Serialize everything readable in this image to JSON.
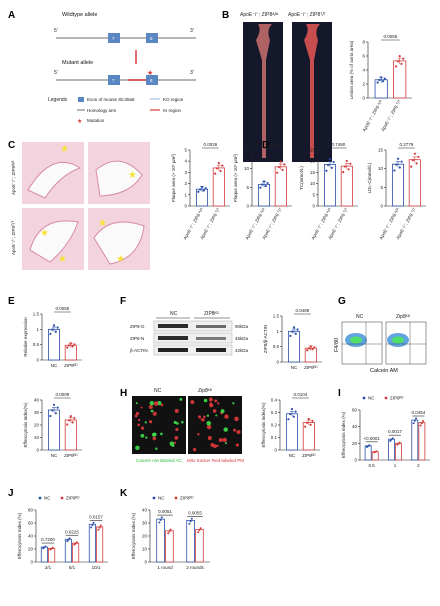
{
  "panels": {
    "A": {
      "label": "A",
      "wildtype": "Wildtype allele",
      "mutant": "Mutant allele",
      "five": "5'",
      "three": "3'",
      "exon7": "7",
      "exon8": "8",
      "legends": "Legends",
      "legend_exon": "Exon of mouse Slc39a8",
      "legend_ko": "KO region",
      "legend_homology": "Homology arm",
      "legend_ki": "KI region",
      "legend_mutation": "Mutation"
    },
    "B": {
      "label": "B",
      "title_left": "ApoE⁻/⁻; ZIP8ᴬ/ᴬ",
      "title_right": "ApoE⁻/⁻; ZIP8ᵀ/ᵀ",
      "pvalue": "0.0055",
      "ylabel": "Lesion area (% of aorta area)",
      "xtick1": "ApoE⁻/⁻; ZIP8 ᴬ/ᴬ",
      "xtick2": "ApoE⁻/⁻; ZIP8 ᵀ/ᵀ"
    },
    "C": {
      "label": "C",
      "row1": "ApoE⁻/⁻; ZIP8ᴬ/ᴬ",
      "row2": "ApoE⁻/⁻; ZIP8ᵀ/ᵀ",
      "p1": "0.0026",
      "p2": "0.0026",
      "ylabel1": "Plaque area (× 10⁵ μm²)",
      "ylabel2": "Plaque area (× 10⁵ μm²)"
    },
    "D": {
      "label": "D",
      "p1": "0.7480",
      "p2": "0.2779",
      "ylabel1": "TC(mmol/L)",
      "ylabel2": "LDL-C(mmol/L)"
    },
    "E": {
      "label": "E",
      "pvalue": "0.0055",
      "ylabel": "Relative expression",
      "xtick1": "NC",
      "xtick2": "ZIP8ᴷᴰ"
    },
    "F": {
      "label": "F",
      "lane_nc": "NC",
      "lane_kd": "ZIP8ᴷᴰ",
      "band1": "ZIP8-G",
      "band2": "ZIP8-N",
      "band3": "β-ACTIN",
      "kda1": "90kDa",
      "kda2": "45kDa",
      "kda3": "42kDa",
      "pvalue": "0.0489",
      "ylabel": "ZIP8/β-ACTIN",
      "xtick1": "NC",
      "xtick2": "ZIP8ᴷᴰ"
    },
    "G": {
      "label": "G",
      "nc": "NC",
      "kd": "Zip8ᴷᴰ",
      "ylabel": "F4/80",
      "xlabel": "Calcein AM"
    },
    "E2": {
      "pvalue": "0.0009",
      "ylabel": "Efferocytosis Index(%)",
      "xtick1": "NC",
      "xtick2": "ZIP8ᴷᴰ"
    },
    "H": {
      "label": "H",
      "nc": "NC",
      "kd": "Zip8ᴷᴰ",
      "caption_green": "Calcein AM labeled AC;",
      "caption_red": "Mito tracker Red-labeled PM",
      "pvalue": "0.0104",
      "ylabel": "Efferocytosis Index(%)",
      "xtick1": "NC",
      "xtick2": "ZIP8ᴷᴰ"
    },
    "I": {
      "label": "I",
      "legend_nc": "NC",
      "legend_kd": "ZIP8ᴷᴰ",
      "p1": "<0.0001",
      "p2": "0.0017",
      "p3": "0.0454",
      "ylabel": "Efferocytosis Index (%)",
      "x1": "0.5",
      "x2": "1",
      "x3": "2"
    },
    "J": {
      "label": "J",
      "legend_nc": "NC",
      "legend_kd": "ZIP8ᴷᴰ",
      "p1": "0.7200",
      "p2": "0.0225",
      "p3": "0.0157",
      "ylabel": "Efferocytosis Index (%)",
      "x1": "2/1",
      "x2": "5/1",
      "x3": "10/1"
    },
    "K": {
      "label": "K",
      "legend_nc": "NC",
      "legend_kd": "ZIP8ᴷᴰ",
      "p1": "0.0051",
      "p2": "0.0055",
      "ylabel": "Efferocytosis Index (%)",
      "x1": "1 round",
      "x2": "2 rounds"
    }
  },
  "chart_data": [
    {
      "panel": "B",
      "type": "bar",
      "categories": [
        "ApoE⁻/⁻; ZIP8 ᴬ/ᴬ",
        "ApoE⁻/⁻; ZIP8 ᵀ/ᵀ"
      ],
      "values": [
        2.6,
        5.3
      ],
      "ylim": [
        0,
        8
      ],
      "yticks": [
        0,
        2,
        4,
        6,
        8
      ]
    },
    {
      "panel": "C1",
      "type": "bar",
      "categories": [
        "ApoE⁻/⁻; ZIP8 ᴬ/ᴬ",
        "ApoE⁻/⁻; ZIP8 ᵀ/ᵀ"
      ],
      "values": [
        1.5,
        3.4
      ],
      "ylim": [
        0,
        5
      ],
      "yticks": [
        0,
        1,
        2,
        3,
        4,
        5
      ]
    },
    {
      "panel": "C2",
      "type": "bar",
      "categories": [
        "ApoE⁻/⁻; ZIP8 ᴬ/ᴬ",
        "ApoE⁻/⁻; ZIP8 ᵀ/ᵀ"
      ],
      "values": [
        5.8,
        10.5
      ],
      "ylim": [
        0,
        15
      ],
      "yticks": [
        0,
        5,
        10,
        15
      ]
    },
    {
      "panel": "D1",
      "type": "bar",
      "categories": [
        "ApoE⁻/⁻; ZIP8 ᴬ/ᴬ",
        "ApoE⁻/⁻; ZIP8 ᵀ/ᵀ"
      ],
      "values": [
        18.5,
        17.8
      ],
      "ylim": [
        0,
        25
      ],
      "yticks": [
        0,
        5,
        10,
        15,
        20,
        25
      ]
    },
    {
      "panel": "D2",
      "type": "bar",
      "categories": [
        "ApoE⁻/⁻; ZIP8 ᴬ/ᴬ",
        "ApoE⁻/⁻; ZIP8 ᵀ/ᵀ"
      ],
      "values": [
        11.2,
        12.4
      ],
      "ylim": [
        0,
        15
      ],
      "yticks": [
        0,
        5,
        10,
        15
      ]
    },
    {
      "panel": "E",
      "type": "bar",
      "categories": [
        "NC",
        "ZIP8ᴷᴰ"
      ],
      "values": [
        1.0,
        0.48
      ],
      "ylim": [
        0,
        1.5
      ],
      "yticks": [
        0.0,
        0.5,
        1.0,
        1.5
      ]
    },
    {
      "panel": "F",
      "type": "bar",
      "categories": [
        "NC",
        "ZIP8ᴷᴰ"
      ],
      "values": [
        1.0,
        0.45
      ],
      "ylim": [
        0,
        1.5
      ],
      "yticks": [
        0.0,
        0.5,
        1.0,
        1.5
      ]
    },
    {
      "panel": "E2",
      "type": "bar",
      "categories": [
        "NC",
        "ZIP8ᴷᴰ"
      ],
      "values": [
        32,
        24
      ],
      "ylim": [
        0,
        40
      ],
      "yticks": [
        0,
        10,
        20,
        30,
        40
      ]
    },
    {
      "panel": "H",
      "type": "bar",
      "categories": [
        "NC",
        "ZIP8ᴷᴰ"
      ],
      "values": [
        0.29,
        0.22
      ],
      "ylim": [
        0,
        0.4
      ],
      "yticks": [
        0.0,
        0.1,
        0.2,
        0.3,
        0.4
      ]
    },
    {
      "panel": "I",
      "type": "bar",
      "categories": [
        "0.5",
        "1",
        "2"
      ],
      "series": [
        {
          "name": "NC",
          "values": [
            17,
            25,
            48
          ]
        },
        {
          "name": "ZIP8ᴷᴰ",
          "values": [
            10,
            20,
            45
          ]
        }
      ],
      "ylim": [
        0,
        60
      ],
      "yticks": [
        0,
        20,
        40,
        60
      ]
    },
    {
      "panel": "J",
      "type": "bar",
      "categories": [
        "2/1",
        "5/1",
        "10/1"
      ],
      "series": [
        {
          "name": "NC",
          "values": [
            23,
            35,
            58
          ]
        },
        {
          "name": "ZIP8ᴷᴰ",
          "values": [
            21,
            29,
            54
          ]
        }
      ],
      "ylim": [
        0,
        80
      ],
      "yticks": [
        0,
        20,
        40,
        60,
        80
      ]
    },
    {
      "panel": "K",
      "type": "bar",
      "categories": [
        "1 round",
        "2 rounds"
      ],
      "series": [
        {
          "name": "NC",
          "values": [
            33,
            32
          ]
        },
        {
          "name": "ZIP8ᴷᴰ",
          "values": [
            24,
            25
          ]
        }
      ],
      "ylim": [
        0,
        40
      ],
      "yticks": [
        0,
        10,
        20,
        30,
        40
      ]
    }
  ]
}
